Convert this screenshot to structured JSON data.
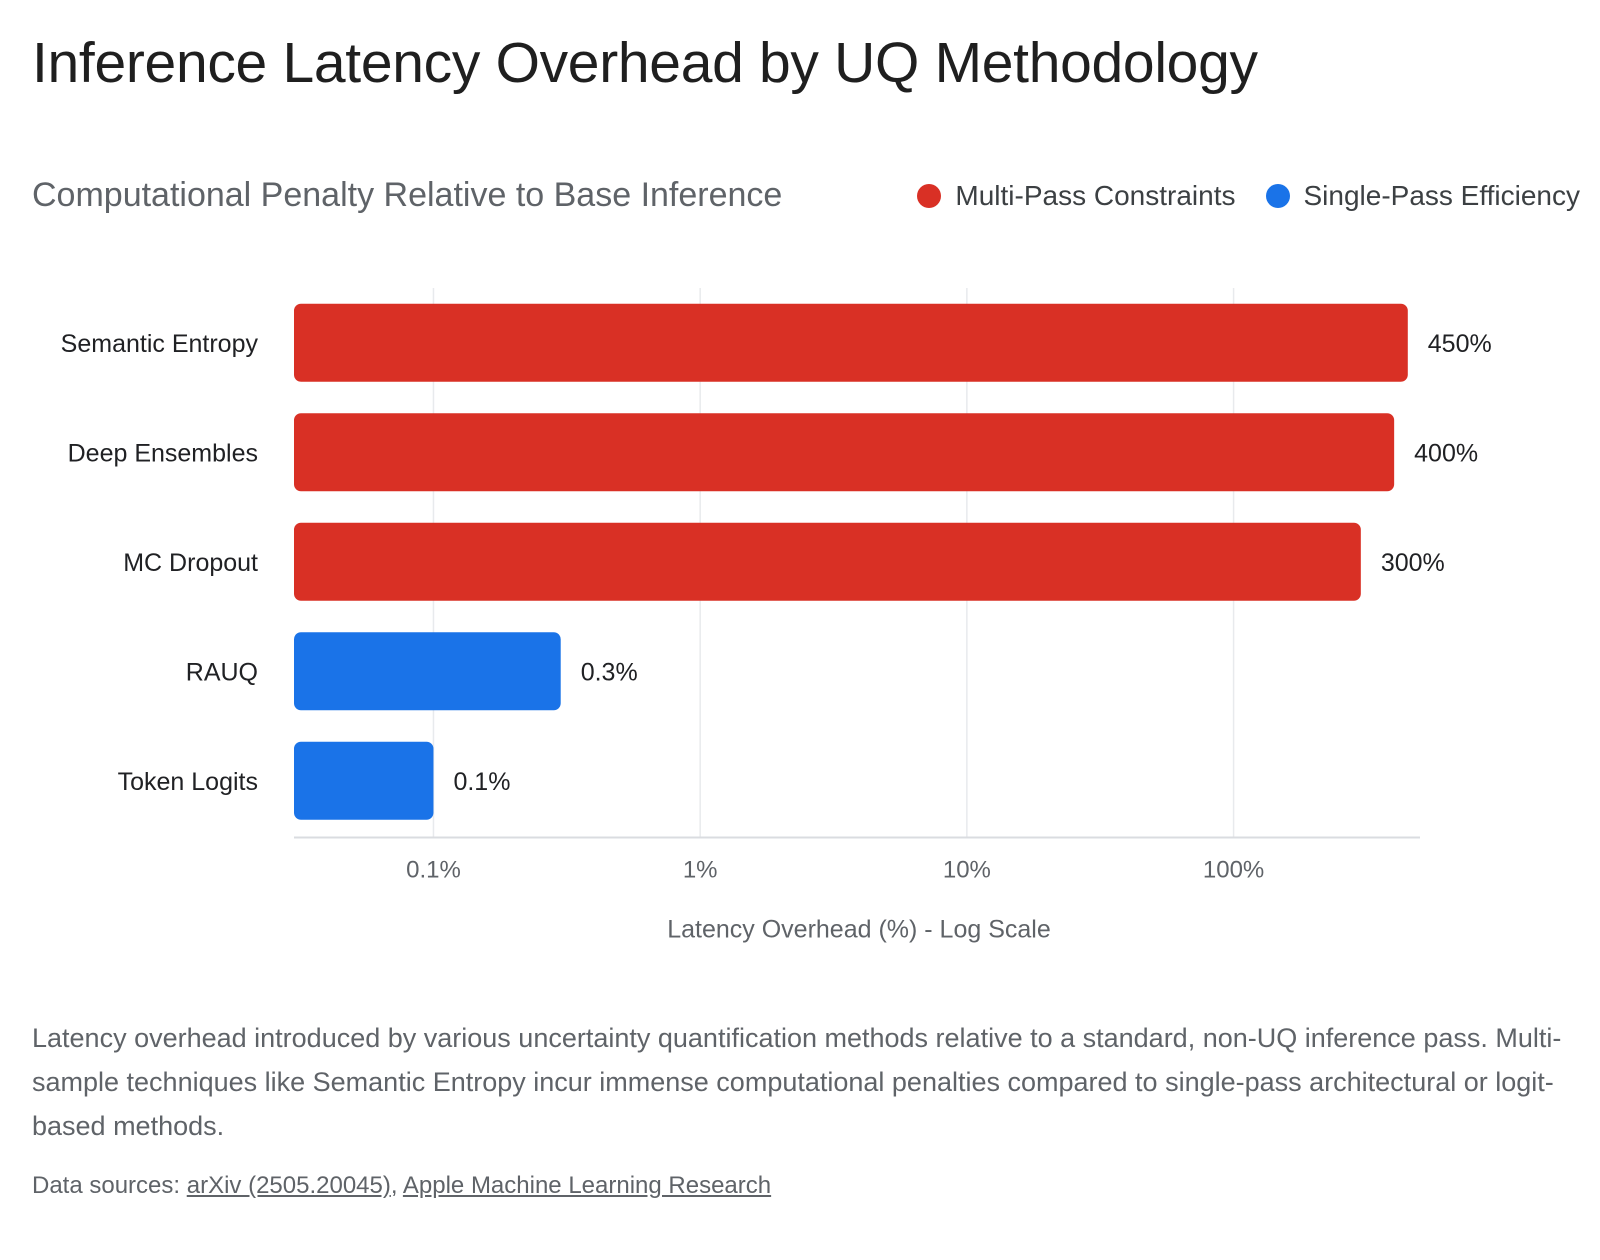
{
  "title": "Inference Latency Overhead by UQ Methodology",
  "subtitle": "Computational Penalty Relative to Base Inference",
  "legend": [
    {
      "label": "Multi-Pass Constraints",
      "color": "#d93025"
    },
    {
      "label": "Single-Pass Efficiency",
      "color": "#1a73e8"
    }
  ],
  "chart_data": {
    "type": "bar",
    "orientation": "horizontal",
    "x_scale": "log",
    "xlabel": "Latency Overhead (%) - Log Scale",
    "xlim": [
      0.03,
      500
    ],
    "xticks": [
      0.1,
      1,
      10,
      100
    ],
    "xtick_labels": [
      "0.1%",
      "1%",
      "10%",
      "100%"
    ],
    "grid": "vertical",
    "categories": [
      "Semantic Entropy",
      "Deep Ensembles",
      "MC Dropout",
      "RAUQ",
      "Token Logits"
    ],
    "values": [
      450,
      400,
      300,
      0.3,
      0.1
    ],
    "value_labels": [
      "450%",
      "400%",
      "300%",
      "0.3%",
      "0.1%"
    ],
    "groups": [
      "Multi-Pass Constraints",
      "Multi-Pass Constraints",
      "Multi-Pass Constraints",
      "Single-Pass Efficiency",
      "Single-Pass Efficiency"
    ]
  },
  "description": "Latency overhead introduced by various uncertainty quantification methods relative to a standard, non-UQ inference pass. Multi-sample techniques like Semantic Entropy incur immense computational penalties compared to single-pass architectural or logit-based methods.",
  "sources": {
    "prefix": "Data sources: ",
    "links": [
      "arXiv (2505.20045)",
      "Apple Machine Learning Research"
    ],
    "separator": ", "
  }
}
